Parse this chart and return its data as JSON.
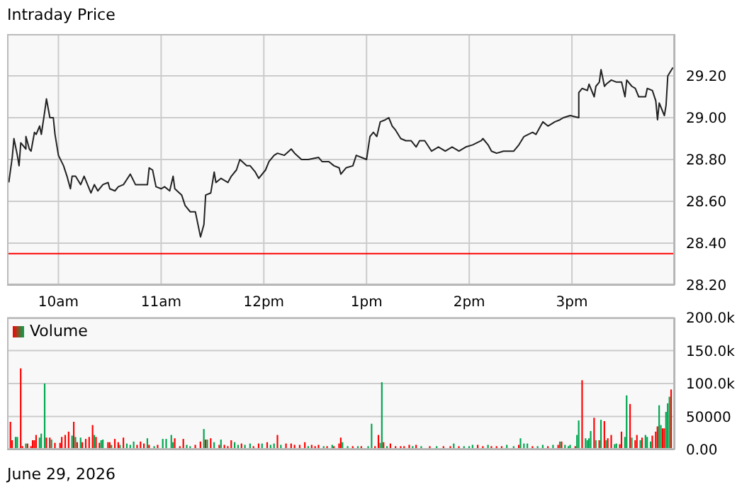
{
  "chart_data": [
    {
      "type": "line",
      "title": "Intraday Price",
      "xlim": [
        "2026-06-29T09:30",
        "2026-06-29T16:00"
      ],
      "xticks": [
        {
          "value": "2026-06-29T10:00",
          "label": "10am"
        },
        {
          "value": "2026-06-29T11:00",
          "label": "11am"
        },
        {
          "value": "2026-06-29T12:00",
          "label": "12pm"
        },
        {
          "value": "2026-06-29T13:00",
          "label": "1pm"
        },
        {
          "value": "2026-06-29T14:00",
          "label": "2pm"
        },
        {
          "value": "2026-06-29T15:00",
          "label": "3pm"
        }
      ],
      "ylim": [
        28.2,
        29.4
      ],
      "yticks": [
        {
          "value": 28.2,
          "label": "28.20"
        },
        {
          "value": 28.4,
          "label": "28.40"
        },
        {
          "value": 28.6,
          "label": "28.60"
        },
        {
          "value": 28.8,
          "label": "28.80"
        },
        {
          "value": 29.0,
          "label": "29.00"
        },
        {
          "value": 29.2,
          "label": "29.20"
        }
      ],
      "grid": true,
      "ref_lines": [
        {
          "axis": "y",
          "value": 28.35,
          "color": "#ff0000"
        }
      ],
      "x": [
        "2026-06-29T09:31",
        "2026-06-29T09:33",
        "2026-06-29T09:34",
        "2026-06-29T09:36",
        "2026-06-29T09:37",
        "2026-06-29T09:38",
        "2026-06-29T09:41",
        "2026-06-29T09:41",
        "2026-06-29T09:43",
        "2026-06-29T09:44",
        "2026-06-29T09:46",
        "2026-06-29T09:47",
        "2026-06-29T09:49",
        "2026-06-29T09:50",
        "2026-06-29T09:52",
        "2026-06-29T09:53",
        "2026-06-29T09:55",
        "2026-06-29T09:57",
        "2026-06-29T09:58",
        "2026-06-29T10:00",
        "2026-06-29T10:03",
        "2026-06-29T10:05",
        "2026-06-29T10:07",
        "2026-06-29T10:08",
        "2026-06-29T10:10",
        "2026-06-29T10:13",
        "2026-06-29T10:15",
        "2026-06-29T10:18",
        "2026-06-29T10:19",
        "2026-06-29T10:21",
        "2026-06-29T10:23",
        "2026-06-29T10:26",
        "2026-06-29T10:29",
        "2026-06-29T10:30",
        "2026-06-29T10:33",
        "2026-06-29T10:35",
        "2026-06-29T10:38",
        "2026-06-29T10:42",
        "2026-06-29T10:45",
        "2026-06-29T10:52",
        "2026-06-29T10:53",
        "2026-06-29T10:55",
        "2026-06-29T10:57",
        "2026-06-29T11:00",
        "2026-06-29T11:02",
        "2026-06-29T11:05",
        "2026-06-29T11:07",
        "2026-06-29T11:08",
        "2026-06-29T11:12",
        "2026-06-29T11:14",
        "2026-06-29T11:17",
        "2026-06-29T11:20",
        "2026-06-29T11:22",
        "2026-06-29T11:23",
        "2026-06-29T11:25",
        "2026-06-29T11:26",
        "2026-06-29T11:29",
        "2026-06-29T11:31",
        "2026-06-29T11:32",
        "2026-06-29T11:35",
        "2026-06-29T11:39",
        "2026-06-29T11:41",
        "2026-06-29T11:44",
        "2026-06-29T11:46",
        "2026-06-29T11:50",
        "2026-06-29T11:52",
        "2026-06-29T11:55",
        "2026-06-29T11:57",
        "2026-06-29T12:01",
        "2026-06-29T12:03",
        "2026-06-29T12:06",
        "2026-06-29T12:08",
        "2026-06-29T12:12",
        "2026-06-29T12:16",
        "2026-06-29T12:18",
        "2026-06-29T12:22",
        "2026-06-29T12:26",
        "2026-06-29T12:32",
        "2026-06-29T12:34",
        "2026-06-29T12:38",
        "2026-06-29T12:41",
        "2026-06-29T12:44",
        "2026-06-29T12:45",
        "2026-06-29T12:48",
        "2026-06-29T12:52",
        "2026-06-29T12:54",
        "2026-06-29T12:57",
        "2026-06-29T13:00",
        "2026-06-29T13:02",
        "2026-06-29T13:04",
        "2026-06-29T13:06",
        "2026-06-29T13:08",
        "2026-06-29T13:11",
        "2026-06-29T13:13",
        "2026-06-29T13:15",
        "2026-06-29T13:17",
        "2026-06-29T13:20",
        "2026-06-29T13:23",
        "2026-06-29T13:26",
        "2026-06-29T13:29",
        "2026-06-29T13:31",
        "2026-06-29T13:34",
        "2026-06-29T13:38",
        "2026-06-29T13:42",
        "2026-06-29T13:46",
        "2026-06-29T13:50",
        "2026-06-29T13:54",
        "2026-06-29T13:58",
        "2026-06-29T14:02",
        "2026-06-29T14:07",
        "2026-06-29T14:08",
        "2026-06-29T14:11",
        "2026-06-29T14:13",
        "2026-06-29T14:16",
        "2026-06-29T14:20",
        "2026-06-29T14:26",
        "2026-06-29T14:29",
        "2026-06-29T14:32",
        "2026-06-29T14:37",
        "2026-06-29T14:39",
        "2026-06-29T14:43",
        "2026-06-29T14:46",
        "2026-06-29T14:50",
        "2026-06-29T14:53",
        "2026-06-29T14:55",
        "2026-06-29T14:59",
        "2026-06-29T15:04",
        "2026-06-29T15:04",
        "2026-06-29T15:06",
        "2026-06-29T15:09",
        "2026-06-29T15:10",
        "2026-06-29T15:13",
        "2026-06-29T15:14",
        "2026-06-29T15:16",
        "2026-06-29T15:17",
        "2026-06-29T15:19",
        "2026-06-29T15:20",
        "2026-06-29T15:23",
        "2026-06-29T15:26",
        "2026-06-29T15:29",
        "2026-06-29T15:31",
        "2026-06-29T15:32",
        "2026-06-29T15:35",
        "2026-06-29T15:37",
        "2026-06-29T15:39",
        "2026-06-29T15:43",
        "2026-06-29T15:44",
        "2026-06-29T15:47",
        "2026-06-29T15:49",
        "2026-06-29T15:50",
        "2026-06-29T15:51",
        "2026-06-29T15:52",
        "2026-06-29T15:54",
        "2026-06-29T15:55",
        "2026-06-29T15:56",
        "2026-06-29T15:59"
      ],
      "series": [
        {
          "color": "#222222",
          "values": [
            28.69,
            28.81,
            28.9,
            28.82,
            28.77,
            28.88,
            28.85,
            28.91,
            28.85,
            28.84,
            28.93,
            28.92,
            28.96,
            28.92,
            29.03,
            29.09,
            29.0,
            29.0,
            28.92,
            28.82,
            28.77,
            28.72,
            28.66,
            28.72,
            28.72,
            28.68,
            28.72,
            28.66,
            28.64,
            28.68,
            28.65,
            28.68,
            28.69,
            28.66,
            28.65,
            28.67,
            28.68,
            28.73,
            28.68,
            28.68,
            28.76,
            28.75,
            28.67,
            28.66,
            28.67,
            28.65,
            28.72,
            28.66,
            28.63,
            28.58,
            28.55,
            28.55,
            28.47,
            28.43,
            28.49,
            28.63,
            28.64,
            28.74,
            28.69,
            28.71,
            28.69,
            28.72,
            28.75,
            28.8,
            28.77,
            28.77,
            28.74,
            28.71,
            28.75,
            28.79,
            28.82,
            28.83,
            28.82,
            28.85,
            28.83,
            28.8,
            28.8,
            28.81,
            28.79,
            28.79,
            28.77,
            28.76,
            28.73,
            28.76,
            28.77,
            28.82,
            28.81,
            28.8,
            28.91,
            28.93,
            28.91,
            28.98,
            28.99,
            29.0,
            28.96,
            28.94,
            28.9,
            28.89,
            28.89,
            28.86,
            28.89,
            28.89,
            28.84,
            28.86,
            28.84,
            28.86,
            28.84,
            28.86,
            28.87,
            28.89,
            28.9,
            28.87,
            28.84,
            28.83,
            28.84,
            28.84,
            28.87,
            28.91,
            28.93,
            28.92,
            28.98,
            28.96,
            28.98,
            28.99,
            29.0,
            29.01,
            29.0,
            29.12,
            29.14,
            29.13,
            29.16,
            29.1,
            29.15,
            29.17,
            29.23,
            29.15,
            29.16,
            29.18,
            29.17,
            29.17,
            29.1,
            29.18,
            29.15,
            29.14,
            29.1,
            29.1,
            29.14,
            29.13,
            29.08,
            28.99,
            29.07,
            29.05,
            29.01,
            29.06,
            29.2,
            29.24
          ]
        }
      ]
    },
    {
      "type": "bar",
      "legend": "top left",
      "annotations": [
        "June 29, 2026"
      ],
      "tick_labels": "y",
      "xlim": [
        "2026-06-29T09:30",
        "2026-06-29T16:00"
      ],
      "xticks": [
        {
          "value": "2026-06-29T10:00",
          "label": null
        },
        {
          "value": "2026-06-29T11:00",
          "label": null
        },
        {
          "value": "2026-06-29T12:00",
          "label": null
        },
        {
          "value": "2026-06-29T13:00",
          "label": null
        },
        {
          "value": "2026-06-29T14:00",
          "label": null
        },
        {
          "value": "2026-06-29T15:00",
          "label": null
        }
      ],
      "ylim": [
        0,
        200000
      ],
      "yticks": [
        {
          "value": 0,
          "label": "0.00"
        },
        50000,
        {
          "value": 100000,
          "label": "100.0k"
        },
        {
          "value": 150000,
          "label": "150.0k"
        },
        {
          "value": 200000,
          "label": "200.0k"
        }
      ],
      "grid": true,
      "x": [
        "2026-06-29T09:32",
        "2026-06-29T09:33",
        "2026-06-29T09:35",
        "2026-06-29T09:36",
        "2026-06-29T09:38",
        "2026-06-29T09:39",
        "2026-06-29T09:41",
        "2026-06-29T09:42",
        "2026-06-29T09:44",
        "2026-06-29T09:45",
        "2026-06-29T09:46",
        "2026-06-29T09:47",
        "2026-06-29T09:49",
        "2026-06-29T09:50",
        "2026-06-29T09:52",
        "2026-06-29T09:53",
        "2026-06-29T09:55",
        "2026-06-29T09:56",
        "2026-06-29T09:58",
        "2026-06-29T10:01",
        "2026-06-29T10:02",
        "2026-06-29T10:04",
        "2026-06-29T10:06",
        "2026-06-29T10:08",
        "2026-06-29T10:09",
        "2026-06-29T10:10",
        "2026-06-29T10:11",
        "2026-06-29T10:13",
        "2026-06-29T10:14",
        "2026-06-29T10:16",
        "2026-06-29T10:18",
        "2026-06-29T10:20",
        "2026-06-29T10:21",
        "2026-06-29T10:22",
        "2026-06-29T10:24",
        "2026-06-29T10:25",
        "2026-06-29T10:26",
        "2026-06-29T10:29",
        "2026-06-29T10:30",
        "2026-06-29T10:31",
        "2026-06-29T10:33",
        "2026-06-29T10:35",
        "2026-06-29T10:36",
        "2026-06-29T10:38",
        "2026-06-29T10:40",
        "2026-06-29T10:42",
        "2026-06-29T10:44",
        "2026-06-29T10:46",
        "2026-06-29T10:48",
        "2026-06-29T10:50",
        "2026-06-29T10:52",
        "2026-06-29T10:53",
        "2026-06-29T10:56",
        "2026-06-29T10:58",
        "2026-06-29T11:01",
        "2026-06-29T11:03",
        "2026-06-29T11:06",
        "2026-06-29T11:07",
        "2026-06-29T11:08",
        "2026-06-29T11:11",
        "2026-06-29T11:13",
        "2026-06-29T11:15",
        "2026-06-29T11:17",
        "2026-06-29T11:20",
        "2026-06-29T11:23",
        "2026-06-29T11:25",
        "2026-06-29T11:26",
        "2026-06-29T11:27",
        "2026-06-29T11:29",
        "2026-06-29T11:31",
        "2026-06-29T11:34",
        "2026-06-29T11:35",
        "2026-06-29T11:37",
        "2026-06-29T11:39",
        "2026-06-29T11:41",
        "2026-06-29T11:43",
        "2026-06-29T11:45",
        "2026-06-29T11:47",
        "2026-06-29T11:49",
        "2026-06-29T11:52",
        "2026-06-29T11:54",
        "2026-06-29T11:57",
        "2026-06-29T11:59",
        "2026-06-29T12:02",
        "2026-06-29T12:04",
        "2026-06-29T12:06",
        "2026-06-29T12:08",
        "2026-06-29T12:10",
        "2026-06-29T12:13",
        "2026-06-29T12:16",
        "2026-06-29T12:18",
        "2026-06-29T12:21",
        "2026-06-29T12:24",
        "2026-06-29T12:26",
        "2026-06-29T12:28",
        "2026-06-29T12:30",
        "2026-06-29T12:32",
        "2026-06-29T12:35",
        "2026-06-29T12:37",
        "2026-06-29T12:40",
        "2026-06-29T12:41",
        "2026-06-29T12:44",
        "2026-06-29T12:45",
        "2026-06-29T12:46",
        "2026-06-29T12:49",
        "2026-06-29T12:52",
        "2026-06-29T12:55",
        "2026-06-29T12:57",
        "2026-06-29T13:01",
        "2026-06-29T13:03",
        "2026-06-29T13:05",
        "2026-06-29T13:07",
        "2026-06-29T13:08",
        "2026-06-29T13:09",
        "2026-06-29T13:10",
        "2026-06-29T13:12",
        "2026-06-29T13:14",
        "2026-06-29T13:17",
        "2026-06-29T13:20",
        "2026-06-29T13:22",
        "2026-06-29T13:25",
        "2026-06-29T13:27",
        "2026-06-29T13:29",
        "2026-06-29T13:32",
        "2026-06-29T13:37",
        "2026-06-29T13:41",
        "2026-06-29T13:45",
        "2026-06-29T13:49",
        "2026-06-29T13:51",
        "2026-06-29T13:54",
        "2026-06-29T13:57",
        "2026-06-29T14:00",
        "2026-06-29T14:02",
        "2026-06-29T14:05",
        "2026-06-29T14:08",
        "2026-06-29T14:11",
        "2026-06-29T14:13",
        "2026-06-29T14:16",
        "2026-06-29T14:19",
        "2026-06-29T14:22",
        "2026-06-29T14:26",
        "2026-06-29T14:29",
        "2026-06-29T14:30",
        "2026-06-29T14:32",
        "2026-06-29T14:34",
        "2026-06-29T14:37",
        "2026-06-29T14:40",
        "2026-06-29T14:43",
        "2026-06-29T14:46",
        "2026-06-29T14:49",
        "2026-06-29T14:52",
        "2026-06-29T14:53",
        "2026-06-29T14:54",
        "2026-06-29T14:56",
        "2026-06-29T14:58",
        "2026-06-29T14:59",
        "2026-06-29T15:02",
        "2026-06-29T15:03",
        "2026-06-29T15:04",
        "2026-06-29T15:06",
        "2026-06-29T15:08",
        "2026-06-29T15:09",
        "2026-06-29T15:10",
        "2026-06-29T15:11",
        "2026-06-29T15:13",
        "2026-06-29T15:14",
        "2026-06-29T15:16",
        "2026-06-29T15:17",
        "2026-06-29T15:19",
        "2026-06-29T15:20",
        "2026-06-29T15:21",
        "2026-06-29T15:23",
        "2026-06-29T15:25",
        "2026-06-29T15:26",
        "2026-06-29T15:28",
        "2026-06-29T15:29",
        "2026-06-29T15:31",
        "2026-06-29T15:32",
        "2026-06-29T15:34",
        "2026-06-29T15:35",
        "2026-06-29T15:37",
        "2026-06-29T15:38",
        "2026-06-29T15:40",
        "2026-06-29T15:41",
        "2026-06-29T15:43",
        "2026-06-29T15:44",
        "2026-06-29T15:46",
        "2026-06-29T15:47",
        "2026-06-29T15:49",
        "2026-06-29T15:50",
        "2026-06-29T15:51",
        "2026-06-29T15:52",
        "2026-06-29T15:53",
        "2026-06-29T15:54",
        "2026-06-29T15:55",
        "2026-06-29T15:56",
        "2026-06-29T15:57",
        "2026-06-29T15:58"
      ],
      "series": [
        {
          "name": "Volume",
          "values": [
            42000,
            14000,
            19000,
            19000,
            123000,
            5000,
            9000,
            9000,
            5000,
            14000,
            14000,
            22000,
            18000,
            24000,
            100000,
            18000,
            18000,
            15000,
            10000,
            10000,
            19000,
            22000,
            27000,
            21000,
            42000,
            19000,
            11000,
            18000,
            11000,
            16000,
            19000,
            37000,
            22000,
            19000,
            10000,
            14000,
            15000,
            11000,
            11000,
            7000,
            16000,
            11000,
            7000,
            18000,
            9000,
            7000,
            12000,
            7000,
            12000,
            9000,
            17000,
            7000,
            5000,
            7000,
            16000,
            16000,
            22000,
            11000,
            17000,
            5000,
            16000,
            7000,
            5000,
            7000,
            12000,
            31000,
            15000,
            15000,
            17000,
            11000,
            7000,
            15000,
            7000,
            5000,
            14000,
            11000,
            7000,
            9000,
            7000,
            9000,
            5000,
            9000,
            9000,
            11000,
            7000,
            9000,
            22000,
            7000,
            9000,
            9000,
            7000,
            7000,
            11000,
            5000,
            7000,
            5000,
            7000,
            5000,
            5000,
            7000,
            5000,
            9000,
            18000,
            11000,
            5000,
            5000,
            5000,
            5000,
            5000,
            39000,
            5000,
            22000,
            10000,
            102000,
            11000,
            5000,
            9000,
            5000,
            5000,
            5000,
            7000,
            5000,
            7000,
            5000,
            5000,
            5000,
            5000,
            5000,
            9000,
            5000,
            5000,
            5000,
            7000,
            7000,
            5000,
            7000,
            5000,
            5000,
            5000,
            7000,
            5000,
            7000,
            17000,
            9000,
            9000,
            5000,
            5000,
            7000,
            5000,
            7000,
            7000,
            12000,
            12000,
            7000,
            5000,
            7000,
            5000,
            22000,
            44000,
            105000,
            17000,
            14000,
            17000,
            28000,
            48000,
            14000,
            14000,
            45000,
            43000,
            14000,
            17000,
            22000,
            8000,
            9000,
            8000,
            27000,
            19000,
            82000,
            69000,
            18000,
            14000,
            22000,
            14000,
            18000,
            22000,
            19000,
            12000,
            21000,
            27000,
            35000,
            67000,
            37000,
            32000,
            32000,
            57000,
            70000,
            80000,
            91000
          ],
          "colors": [
            "#ff0000",
            "#ff0000",
            "#00a650",
            "#00a650",
            "#ff0000",
            "#ff0000",
            "#00a650",
            "#ff0000",
            "#ff0000",
            "#ff0000",
            "#ff0000",
            "#ff0000",
            "#00a650",
            "#00a650",
            "#00a650",
            "#ff0000",
            "#ff0000",
            "#00a650",
            "#ff0000",
            "#ff0000",
            "#ff0000",
            "#ff0000",
            "#ff0000",
            "#00a650",
            "#ff0000",
            "#00a650",
            "#ff0000",
            "#00a650",
            "#ff0000",
            "#ff0000",
            "#ff0000",
            "#ff0000",
            "#00a650",
            "#ff0000",
            "#ff0000",
            "#00a650",
            "#00a650",
            "#ff0000",
            "#ff0000",
            "#00a650",
            "#ff0000",
            "#ff0000",
            "#00a650",
            "#ff0000",
            "#00a650",
            "#00a650",
            "#00a650",
            "#ff0000",
            "#ff0000",
            "#ff0000",
            "#00a650",
            "#ff0000",
            "#00a650",
            "#ff0000",
            "#00a650",
            "#00a650",
            "#00a650",
            "#00a650",
            "#ff0000",
            "#ff0000",
            "#ff0000",
            "#00a650",
            "#00a650",
            "#ff0000",
            "#ff0000",
            "#00a650",
            "#ff0000",
            "#00a650",
            "#ff0000",
            "#00a650",
            "#ff0000",
            "#00a650",
            "#ff0000",
            "#ff0000",
            "#ff0000",
            "#00a650",
            "#00a650",
            "#ff0000",
            "#00a650",
            "#00a650",
            "#ff0000",
            "#ff0000",
            "#00a650",
            "#ff0000",
            "#00a650",
            "#00a650",
            "#ff0000",
            "#00a650",
            "#ff0000",
            "#ff0000",
            "#ff0000",
            "#ff0000",
            "#ff0000",
            "#00a650",
            "#ff0000",
            "#ff0000",
            "#ff0000",
            "#00a650",
            "#ff0000",
            "#00a650",
            "#ff0000",
            "#ff0000",
            "#ff0000",
            "#00a650",
            "#00a650",
            "#ff0000",
            "#00a650",
            "#ff0000",
            "#00a650",
            "#00a650",
            "#ff0000",
            "#ff0000",
            "#00a650",
            "#00a650",
            "#ff0000",
            "#00a650",
            "#ff0000",
            "#ff0000",
            "#ff0000",
            "#ff0000",
            "#ff0000",
            "#00a650",
            "#ff0000",
            "#00a650",
            "#ff0000",
            "#00a650",
            "#ff0000",
            "#ff0000",
            "#00a650",
            "#ff0000",
            "#00a650",
            "#00a650",
            "#00a650",
            "#ff0000",
            "#ff0000",
            "#00a650",
            "#ff0000",
            "#ff0000",
            "#ff0000",
            "#00a650",
            "#00a650",
            "#ff0000",
            "#00a650",
            "#00a650",
            "#00a650",
            "#ff0000",
            "#00a650",
            "#00a650",
            "#ff0000",
            "#00a650",
            "#ff0000",
            "#00a650",
            "#ff0000",
            "#00a650",
            "#00a650",
            "#00a650",
            "#ff0000",
            "#00a650",
            "#00a650",
            "#ff0000",
            "#00a650",
            "#00a650",
            "#00a650",
            "#00a650",
            "#ff0000",
            "#00a650",
            "#ff0000",
            "#00a650",
            "#ff0000",
            "#00a650",
            "#ff0000",
            "#ff0000",
            "#00a650",
            "#00a650",
            "#ff0000",
            "#ff0000",
            "#00a650",
            "#00a650",
            "#ff0000",
            "#00a650",
            "#ff0000",
            "#ff0000",
            "#00a650",
            "#ff0000",
            "#00a650",
            "#00a650",
            "#00a650",
            "#ff0000",
            "#ff0000",
            "#ff0000",
            "#00a650",
            "#00a650",
            "#ff0000",
            "#ff0000",
            "#00a650",
            "#00a650",
            "#00a650",
            "#ff0000"
          ]
        }
      ]
    }
  ]
}
